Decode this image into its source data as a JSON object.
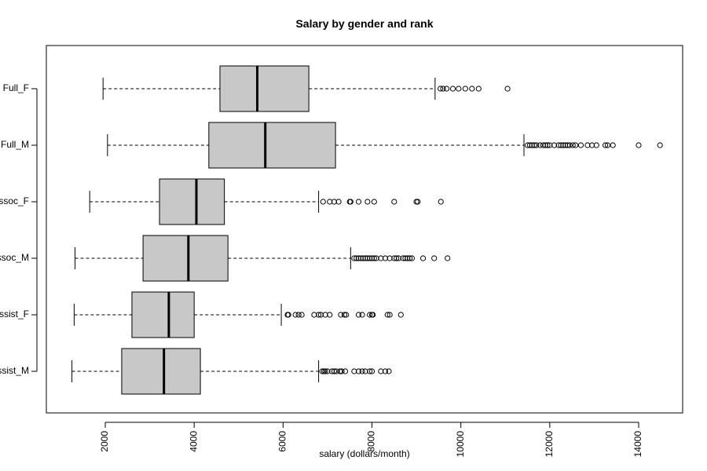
{
  "chart_data": {
    "type": "boxplot",
    "orientation": "horizontal",
    "title": "Salary by gender and rank",
    "xlabel": "salary (dollars/month)",
    "ylabel": "",
    "xlim": [
      1000,
      15000
    ],
    "x_ticks": [
      2000,
      4000,
      6000,
      8000,
      10000,
      12000,
      14000
    ],
    "tick_label_rotation": "vertical",
    "grid": false,
    "legend": "none",
    "colors": {
      "box_fill": "#c8c8c8",
      "stroke": "#000000",
      "median": "#000000"
    },
    "groups": [
      {
        "name": "Full_F",
        "whisker_low": 1950,
        "q1": 4580,
        "median": 5420,
        "q3": 6580,
        "whisker_high": 9420,
        "outliers": [
          9540,
          9600,
          9680,
          9820,
          9950,
          10100,
          10250,
          10400,
          11050
        ]
      },
      {
        "name": "Full_M",
        "whisker_low": 2050,
        "q1": 4330,
        "median": 5600,
        "q3": 7180,
        "whisker_high": 11420,
        "outliers": [
          11500,
          11550,
          11600,
          11650,
          11700,
          11780,
          11850,
          11900,
          11950,
          12000,
          12100,
          12200,
          12250,
          12300,
          12350,
          12400,
          12450,
          12520,
          12580,
          12700,
          12850,
          12950,
          13050,
          13250,
          13300,
          13420,
          14000,
          14480
        ]
      },
      {
        "name": "Assoc_F",
        "whisker_low": 1650,
        "q1": 3220,
        "median": 4050,
        "q3": 4680,
        "whisker_high": 6800,
        "outliers": [
          6900,
          7050,
          7150,
          7250,
          7500,
          7520,
          7700,
          7900,
          8050,
          8500,
          9000,
          9030,
          9550
        ]
      },
      {
        "name": "Assoc_M",
        "whisker_low": 1320,
        "q1": 2850,
        "median": 3870,
        "q3": 4760,
        "whisker_high": 7520,
        "outliers": [
          7600,
          7650,
          7700,
          7750,
          7800,
          7850,
          7900,
          7950,
          8000,
          8050,
          8100,
          8200,
          8300,
          8400,
          8500,
          8550,
          8600,
          8700,
          8750,
          8800,
          8850,
          8900,
          9150,
          9400,
          9700
        ]
      },
      {
        "name": "Assist_F",
        "whisker_low": 1300,
        "q1": 2600,
        "median": 3430,
        "q3": 4000,
        "whisker_high": 5960,
        "outliers": [
          6100,
          6120,
          6280,
          6350,
          6420,
          6700,
          6800,
          6850,
          6950,
          7050,
          7300,
          7380,
          7420,
          7700,
          7780,
          7950,
          8000,
          8020,
          8350,
          8400,
          8650
        ]
      },
      {
        "name": "Assist_M",
        "whisker_low": 1250,
        "q1": 2370,
        "median": 3320,
        "q3": 4140,
        "whisker_high": 6800,
        "outliers": [
          6880,
          6920,
          6950,
          7000,
          7100,
          7150,
          7200,
          7280,
          7320,
          7400,
          7600,
          7700,
          7780,
          7850,
          7950,
          8000,
          8200,
          8300,
          8380
        ]
      }
    ]
  }
}
